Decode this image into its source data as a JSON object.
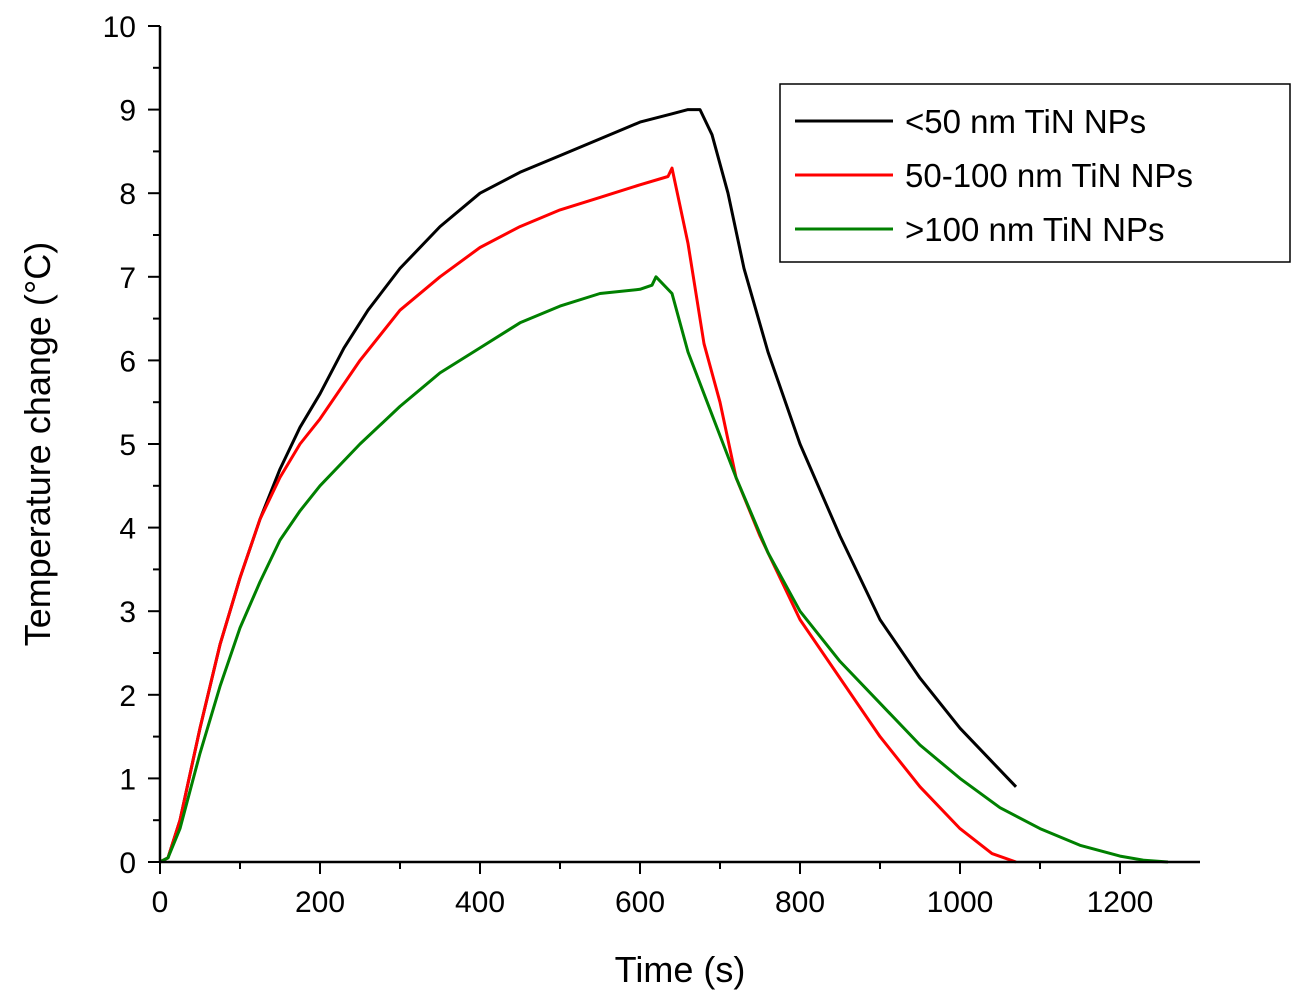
{
  "chart_data": {
    "type": "line",
    "xlabel": "Time (s)",
    "ylabel": "Temperature change (°C)",
    "xlim": [
      0,
      1300
    ],
    "ylim": [
      0,
      10
    ],
    "xticks": [
      0,
      200,
      400,
      600,
      800,
      1000,
      1200
    ],
    "yticks": [
      0,
      1,
      2,
      3,
      4,
      5,
      6,
      7,
      8,
      9,
      10
    ],
    "grid": false,
    "legend_position": "top-right",
    "series": [
      {
        "name": "<50 nm TiN NPs",
        "color": "#000000",
        "x": [
          0,
          10,
          25,
          50,
          75,
          100,
          125,
          150,
          175,
          200,
          230,
          260,
          300,
          350,
          400,
          450,
          500,
          550,
          600,
          640,
          660,
          675,
          690,
          710,
          730,
          760,
          800,
          850,
          900,
          950,
          1000,
          1040,
          1070
        ],
        "y": [
          0,
          0.05,
          0.5,
          1.6,
          2.6,
          3.4,
          4.1,
          4.7,
          5.2,
          5.6,
          6.15,
          6.6,
          7.1,
          7.6,
          8.0,
          8.25,
          8.45,
          8.65,
          8.85,
          8.95,
          9.0,
          9.0,
          8.7,
          8.0,
          7.1,
          6.1,
          5.0,
          3.9,
          2.9,
          2.2,
          1.6,
          1.2,
          0.9
        ]
      },
      {
        "name": "50-100 nm TiN NPs",
        "color": "#ff0000",
        "x": [
          0,
          10,
          25,
          50,
          75,
          100,
          125,
          150,
          175,
          200,
          250,
          300,
          350,
          400,
          450,
          500,
          550,
          600,
          635,
          640,
          660,
          680,
          700,
          720,
          750,
          780,
          800,
          850,
          900,
          950,
          1000,
          1040,
          1070
        ],
        "y": [
          0,
          0.05,
          0.5,
          1.6,
          2.6,
          3.4,
          4.1,
          4.6,
          5.0,
          5.3,
          6.0,
          6.6,
          7.0,
          7.35,
          7.6,
          7.8,
          7.95,
          8.1,
          8.2,
          8.3,
          7.4,
          6.2,
          5.5,
          4.6,
          3.9,
          3.3,
          2.9,
          2.2,
          1.5,
          0.9,
          0.4,
          0.1,
          0.0
        ]
      },
      {
        "name": ">100 nm TiN NPs",
        "color": "#008000",
        "x": [
          0,
          10,
          25,
          50,
          75,
          100,
          125,
          150,
          175,
          200,
          250,
          300,
          350,
          400,
          450,
          500,
          550,
          600,
          615,
          620,
          640,
          660,
          680,
          700,
          720,
          760,
          800,
          850,
          900,
          950,
          1000,
          1050,
          1100,
          1150,
          1200,
          1230,
          1260
        ],
        "y": [
          0,
          0.05,
          0.4,
          1.3,
          2.1,
          2.8,
          3.35,
          3.85,
          4.2,
          4.5,
          5.0,
          5.45,
          5.85,
          6.15,
          6.45,
          6.65,
          6.8,
          6.85,
          6.9,
          7.0,
          6.8,
          6.1,
          5.6,
          5.1,
          4.6,
          3.7,
          3.0,
          2.4,
          1.9,
          1.4,
          1.0,
          0.65,
          0.4,
          0.2,
          0.07,
          0.02,
          0.0
        ]
      }
    ]
  }
}
